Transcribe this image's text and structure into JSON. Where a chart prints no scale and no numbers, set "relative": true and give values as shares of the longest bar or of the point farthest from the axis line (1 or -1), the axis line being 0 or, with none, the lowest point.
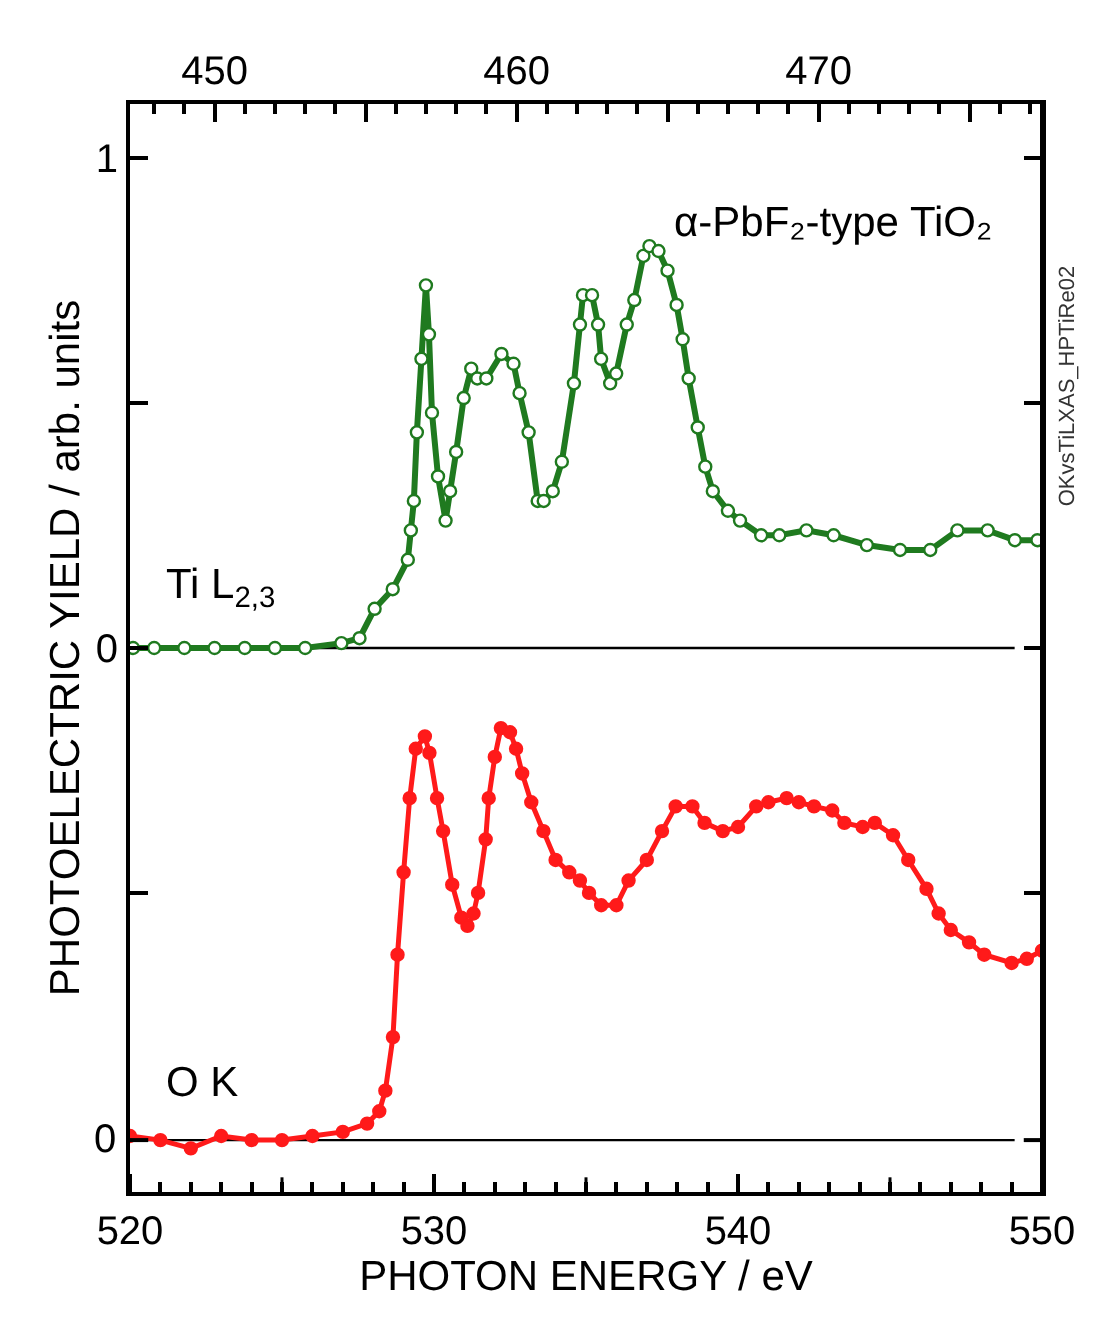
{
  "chart_data": [
    {
      "type": "line",
      "ylabel": "PHOTOELECTRIC YIELD / arb. units",
      "xlim": [
        447.2,
        477.4
      ],
      "xticks": [
        450,
        {
          "value": 455,
          "label": null
        },
        460,
        {
          "value": 465,
          "label": null
        },
        470,
        {
          "value": 475,
          "label": null
        }
      ],
      "ylim": [
        -1.11,
        1.11
      ],
      "yticks": [
        {
          "value": -0.5,
          "label": null
        },
        0,
        {
          "value": 0.5,
          "label": null
        },
        1
      ],
      "marker": "circle",
      "line_style": "solid",
      "grid": false,
      "ref_lines": [
        {
          "axis": "y",
          "value": 0,
          "color": "#000000"
        }
      ],
      "annotations": [
        "α-PbF₂-type TiO₂",
        "Ti L$_{2,3}$",
        "OKvsTiLXAS_HPTiRe02"
      ],
      "series": [
        {
          "color": "#1f7a1f",
          "x": [
            447.3,
            448.0,
            449.0,
            450.0,
            451.0,
            452.0,
            453.0,
            454.2,
            454.8,
            455.3,
            455.9,
            456.4,
            456.5,
            456.6,
            456.7,
            456.85,
            457.0,
            457.1,
            457.2,
            457.4,
            457.65,
            457.8,
            458.0,
            458.25,
            458.5,
            458.7,
            459.0,
            459.5,
            459.9,
            460.1,
            460.4,
            460.7,
            460.9,
            461.2,
            461.5,
            461.9,
            462.1,
            462.2,
            462.5,
            462.7,
            462.8,
            463.1,
            463.3,
            463.65,
            463.9,
            464.2,
            464.4,
            464.7,
            465.0,
            465.3,
            465.5,
            465.7,
            466.0,
            466.25,
            466.5,
            467.0,
            467.4,
            468.1,
            468.7,
            469.6,
            470.5,
            471.6,
            472.7,
            473.7,
            474.6,
            475.6,
            476.5,
            477.25
          ],
          "values": [
            0.0,
            0.0,
            0.0,
            0.0,
            0.0,
            0.0,
            0.0,
            0.01,
            0.02,
            0.08,
            0.12,
            0.18,
            0.24,
            0.3,
            0.44,
            0.59,
            0.74,
            0.64,
            0.48,
            0.35,
            0.26,
            0.32,
            0.4,
            0.51,
            0.57,
            0.55,
            0.55,
            0.6,
            0.58,
            0.52,
            0.44,
            0.3,
            0.3,
            0.32,
            0.38,
            0.54,
            0.66,
            0.72,
            0.72,
            0.66,
            0.59,
            0.54,
            0.56,
            0.66,
            0.71,
            0.8,
            0.82,
            0.81,
            0.77,
            0.7,
            0.63,
            0.55,
            0.45,
            0.37,
            0.32,
            0.28,
            0.26,
            0.23,
            0.23,
            0.24,
            0.23,
            0.21,
            0.2,
            0.2,
            0.24,
            0.24,
            0.22,
            0.22
          ]
        }
      ]
    },
    {
      "type": "line",
      "relative": true,
      "xlabel": "PHOTON ENERGY / eV",
      "xlim": [
        520,
        550
      ],
      "xticks": [
        520,
        530,
        540,
        550
      ],
      "marker": "circle",
      "line_style": "solid",
      "grid": false,
      "ref_lines": [
        {
          "axis": "y",
          "value": 0,
          "label": "0",
          "color": "#000000"
        }
      ],
      "annotations": [
        "O K"
      ],
      "series": [
        {
          "color": "#ff1a1a",
          "x": [
            520.0,
            521.0,
            522.0,
            523.0,
            524.0,
            525.0,
            526.0,
            527.0,
            527.8,
            528.2,
            528.4,
            528.65,
            528.8,
            529.0,
            529.2,
            529.4,
            529.7,
            529.85,
            530.1,
            530.3,
            530.6,
            530.9,
            531.1,
            531.3,
            531.45,
            531.7,
            531.8,
            532.0,
            532.2,
            532.5,
            532.7,
            532.9,
            533.2,
            533.6,
            534.0,
            534.45,
            534.8,
            535.1,
            535.5,
            536.0,
            536.4,
            537.0,
            537.5,
            537.95,
            538.5,
            538.9,
            539.5,
            540.0,
            540.6,
            541.0,
            541.6,
            542.0,
            542.5,
            543.1,
            543.5,
            544.1,
            544.5,
            545.1,
            545.6,
            546.2,
            546.6,
            547.0,
            547.6,
            548.1,
            549.0,
            549.5,
            550.0
          ],
          "values": [
            0.01,
            0.0,
            -0.02,
            0.01,
            0.0,
            0.0,
            0.01,
            0.02,
            0.04,
            0.07,
            0.12,
            0.25,
            0.45,
            0.65,
            0.83,
            0.95,
            0.98,
            0.94,
            0.83,
            0.75,
            0.62,
            0.54,
            0.52,
            0.55,
            0.6,
            0.73,
            0.83,
            0.93,
            1.0,
            0.99,
            0.95,
            0.89,
            0.82,
            0.75,
            0.68,
            0.65,
            0.63,
            0.6,
            0.57,
            0.57,
            0.63,
            0.68,
            0.75,
            0.81,
            0.81,
            0.77,
            0.75,
            0.76,
            0.81,
            0.82,
            0.83,
            0.82,
            0.81,
            0.8,
            0.77,
            0.76,
            0.77,
            0.74,
            0.68,
            0.61,
            0.55,
            0.51,
            0.48,
            0.45,
            0.43,
            0.44,
            0.46
          ]
        }
      ]
    }
  ]
}
